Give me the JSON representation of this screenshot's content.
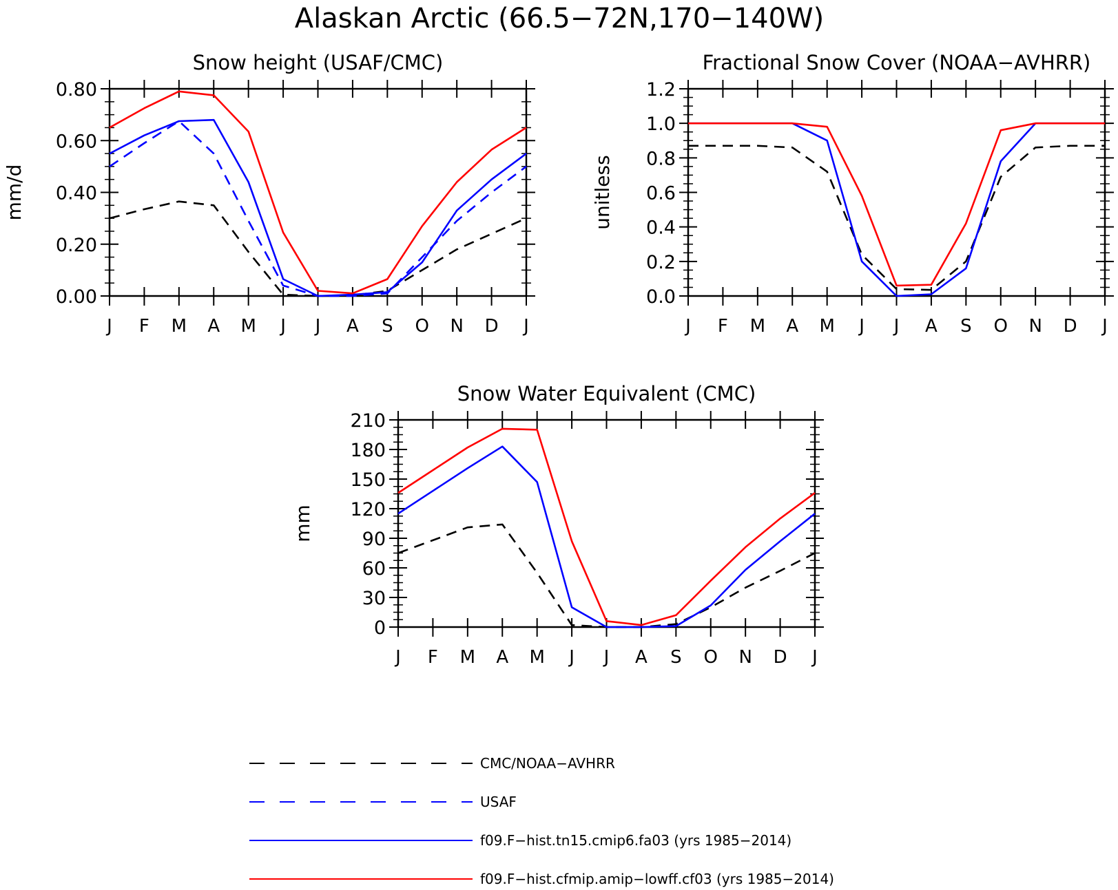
{
  "figure": {
    "title": "Alaskan Arctic (66.5−72N,170−140W)"
  },
  "months": [
    "J",
    "F",
    "M",
    "A",
    "M",
    "J",
    "J",
    "A",
    "S",
    "O",
    "N",
    "D",
    "J"
  ],
  "chart_data": [
    {
      "type": "line",
      "title": "Snow height (USAF/CMC)",
      "xlabel": "",
      "ylabel": "mm/d",
      "ylim": [
        0,
        0.8
      ],
      "yticks": [
        0,
        0.2,
        0.4,
        0.6,
        0.8
      ],
      "ytick_labels": [
        "0.00",
        "0.20",
        "0.40",
        "0.60",
        "0.80"
      ],
      "series": [
        {
          "name": "CMC/NOAA−AVHRR",
          "color": "#000000",
          "dashed": true,
          "values": [
            0.3,
            0.335,
            0.365,
            0.35,
            0.17,
            0.005,
            0.0,
            0.002,
            0.02,
            0.1,
            0.18,
            0.24,
            0.3
          ]
        },
        {
          "name": "USAF",
          "color": "#0000ff",
          "dashed": true,
          "values": [
            0.5,
            0.59,
            0.675,
            0.55,
            0.29,
            0.04,
            0.0,
            0.0,
            0.01,
            0.15,
            0.29,
            0.4,
            0.5
          ]
        },
        {
          "name": "f09.F−hist.tn15.cmip6.fa03 (yrs 1985−2014)",
          "color": "#0000ff",
          "dashed": false,
          "values": [
            0.55,
            0.62,
            0.675,
            0.68,
            0.44,
            0.065,
            0.0,
            0.005,
            0.015,
            0.13,
            0.33,
            0.45,
            0.55
          ]
        },
        {
          "name": "f09.F−hist.cfmip.amip−lowff.cf03 (yrs 1985−2014)",
          "color": "#ff0000",
          "dashed": false,
          "values": [
            0.65,
            0.725,
            0.79,
            0.775,
            0.635,
            0.245,
            0.02,
            0.01,
            0.065,
            0.27,
            0.44,
            0.565,
            0.65
          ]
        }
      ]
    },
    {
      "type": "line",
      "title": "Fractional Snow Cover (NOAA−AVHRR)",
      "xlabel": "",
      "ylabel": "unitless",
      "ylim": [
        0,
        1.2
      ],
      "yticks": [
        0,
        0.2,
        0.4,
        0.6,
        0.8,
        1.0,
        1.2
      ],
      "ytick_labels": [
        "0.0",
        "0.2",
        "0.4",
        "0.6",
        "0.8",
        "1.0",
        "1.2"
      ],
      "series": [
        {
          "name": "CMC/NOAA−AVHRR",
          "color": "#000000",
          "dashed": true,
          "values": [
            0.87,
            0.87,
            0.87,
            0.86,
            0.72,
            0.24,
            0.04,
            0.035,
            0.2,
            0.69,
            0.86,
            0.87,
            0.87
          ]
        },
        {
          "name": "f09.F−hist.tn15.cmip6.fa03 (yrs 1985−2014)",
          "color": "#0000ff",
          "dashed": false,
          "values": [
            1.0,
            1.0,
            1.0,
            1.0,
            0.9,
            0.2,
            0.0,
            0.01,
            0.16,
            0.78,
            1.0,
            1.0,
            1.0
          ]
        },
        {
          "name": "f09.F−hist.cfmip.amip−lowff.cf03 (yrs 1985−2014)",
          "color": "#ff0000",
          "dashed": false,
          "values": [
            1.0,
            1.0,
            1.0,
            1.0,
            0.98,
            0.58,
            0.06,
            0.065,
            0.42,
            0.96,
            1.0,
            1.0,
            1.0
          ]
        }
      ]
    },
    {
      "type": "line",
      "title": "Snow Water Equivalent (CMC)",
      "xlabel": "",
      "ylabel": "mm",
      "ylim": [
        0,
        210
      ],
      "yticks": [
        0,
        30,
        60,
        90,
        120,
        150,
        180,
        210
      ],
      "ytick_labels": [
        "0",
        "30",
        "60",
        "90",
        "120",
        "150",
        "180",
        "210"
      ],
      "series": [
        {
          "name": "CMC/NOAA−AVHRR",
          "color": "#000000",
          "dashed": true,
          "values": [
            75,
            88,
            101,
            104,
            55,
            2,
            0,
            0,
            3,
            20,
            40,
            57,
            75
          ]
        },
        {
          "name": "f09.F−hist.tn15.cmip6.fa03 (yrs 1985−2014)",
          "color": "#0000ff",
          "dashed": false,
          "values": [
            115,
            138,
            161,
            183,
            147,
            20,
            0,
            0,
            1,
            22,
            58,
            87,
            115
          ]
        },
        {
          "name": "f09.F−hist.cfmip.amip−lowff.cf03 (yrs 1985−2014)",
          "color": "#ff0000",
          "dashed": false,
          "values": [
            136,
            159,
            182,
            201,
            200,
            87,
            6,
            2,
            12,
            47,
            81,
            110,
            136
          ]
        }
      ]
    }
  ],
  "legend": [
    {
      "label": "CMC/NOAA−AVHRR",
      "color": "#000000",
      "dashed": true
    },
    {
      "label": "USAF",
      "color": "#0000ff",
      "dashed": true
    },
    {
      "label": "f09.F−hist.tn15.cmip6.fa03 (yrs 1985−2014)",
      "color": "#0000ff",
      "dashed": false
    },
    {
      "label": "f09.F−hist.cfmip.amip−lowff.cf03 (yrs 1985−2014)",
      "color": "#ff0000",
      "dashed": false
    }
  ]
}
